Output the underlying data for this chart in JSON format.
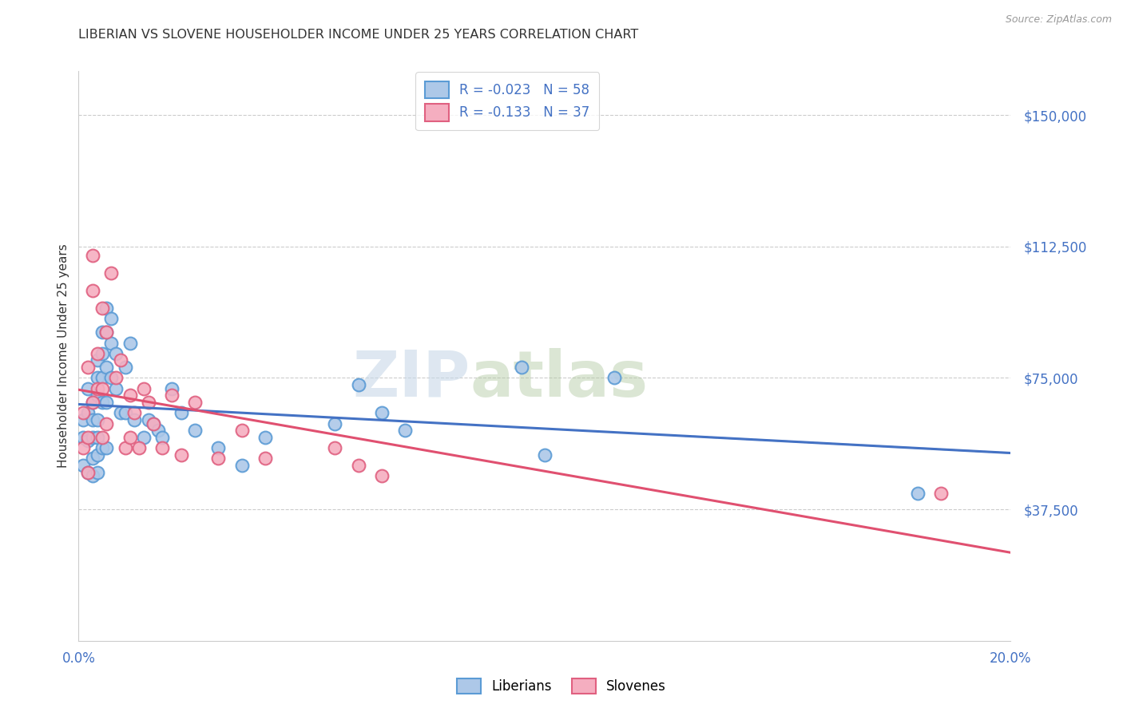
{
  "title": "LIBERIAN VS SLOVENE HOUSEHOLDER INCOME UNDER 25 YEARS CORRELATION CHART",
  "source": "Source: ZipAtlas.com",
  "ylabel": "Householder Income Under 25 years",
  "xlim": [
    0.0,
    0.2
  ],
  "ylim": [
    0,
    162500
  ],
  "yticks": [
    37500,
    75000,
    112500,
    150000
  ],
  "ytick_labels": [
    "$37,500",
    "$75,000",
    "$112,500",
    "$150,000"
  ],
  "xticks": [
    0.0,
    0.2
  ],
  "xtick_labels": [
    "0.0%",
    "20.0%"
  ],
  "liberian_color": "#adc8e8",
  "slovene_color": "#f5aec0",
  "liberian_edge_color": "#5b9bd5",
  "slovene_edge_color": "#e06080",
  "liberian_line_color": "#4472c4",
  "slovene_line_color": "#e05070",
  "R_liberian": -0.023,
  "N_liberian": 58,
  "R_slovene": -0.133,
  "N_slovene": 37,
  "background_color": "#ffffff",
  "grid_color": "#cccccc",
  "watermark_zip": "ZIP",
  "watermark_atlas": "atlas",
  "liberian_x": [
    0.001,
    0.001,
    0.001,
    0.002,
    0.002,
    0.002,
    0.002,
    0.003,
    0.003,
    0.003,
    0.003,
    0.003,
    0.004,
    0.004,
    0.004,
    0.004,
    0.004,
    0.004,
    0.004,
    0.005,
    0.005,
    0.005,
    0.005,
    0.005,
    0.006,
    0.006,
    0.006,
    0.006,
    0.006,
    0.007,
    0.007,
    0.007,
    0.008,
    0.008,
    0.009,
    0.01,
    0.01,
    0.011,
    0.012,
    0.014,
    0.015,
    0.016,
    0.017,
    0.018,
    0.02,
    0.022,
    0.025,
    0.03,
    0.035,
    0.04,
    0.055,
    0.06,
    0.065,
    0.07,
    0.095,
    0.1,
    0.115,
    0.18
  ],
  "liberian_y": [
    63000,
    58000,
    50000,
    72000,
    65000,
    57000,
    48000,
    68000,
    63000,
    58000,
    52000,
    47000,
    80000,
    75000,
    70000,
    63000,
    58000,
    53000,
    48000,
    88000,
    82000,
    75000,
    68000,
    55000,
    95000,
    88000,
    78000,
    68000,
    55000,
    92000,
    85000,
    75000,
    82000,
    72000,
    65000,
    78000,
    65000,
    85000,
    63000,
    58000,
    63000,
    62000,
    60000,
    58000,
    72000,
    65000,
    60000,
    55000,
    50000,
    58000,
    62000,
    73000,
    65000,
    60000,
    78000,
    53000,
    75000,
    42000
  ],
  "slovene_x": [
    0.001,
    0.001,
    0.002,
    0.002,
    0.002,
    0.003,
    0.003,
    0.003,
    0.004,
    0.004,
    0.005,
    0.005,
    0.005,
    0.006,
    0.006,
    0.007,
    0.008,
    0.009,
    0.01,
    0.011,
    0.011,
    0.012,
    0.013,
    0.014,
    0.015,
    0.016,
    0.018,
    0.02,
    0.022,
    0.025,
    0.03,
    0.035,
    0.04,
    0.055,
    0.06,
    0.065,
    0.185
  ],
  "slovene_y": [
    65000,
    55000,
    78000,
    58000,
    48000,
    110000,
    100000,
    68000,
    82000,
    72000,
    95000,
    72000,
    58000,
    88000,
    62000,
    105000,
    75000,
    80000,
    55000,
    70000,
    58000,
    65000,
    55000,
    72000,
    68000,
    62000,
    55000,
    70000,
    53000,
    68000,
    52000,
    60000,
    52000,
    55000,
    50000,
    47000,
    42000
  ]
}
